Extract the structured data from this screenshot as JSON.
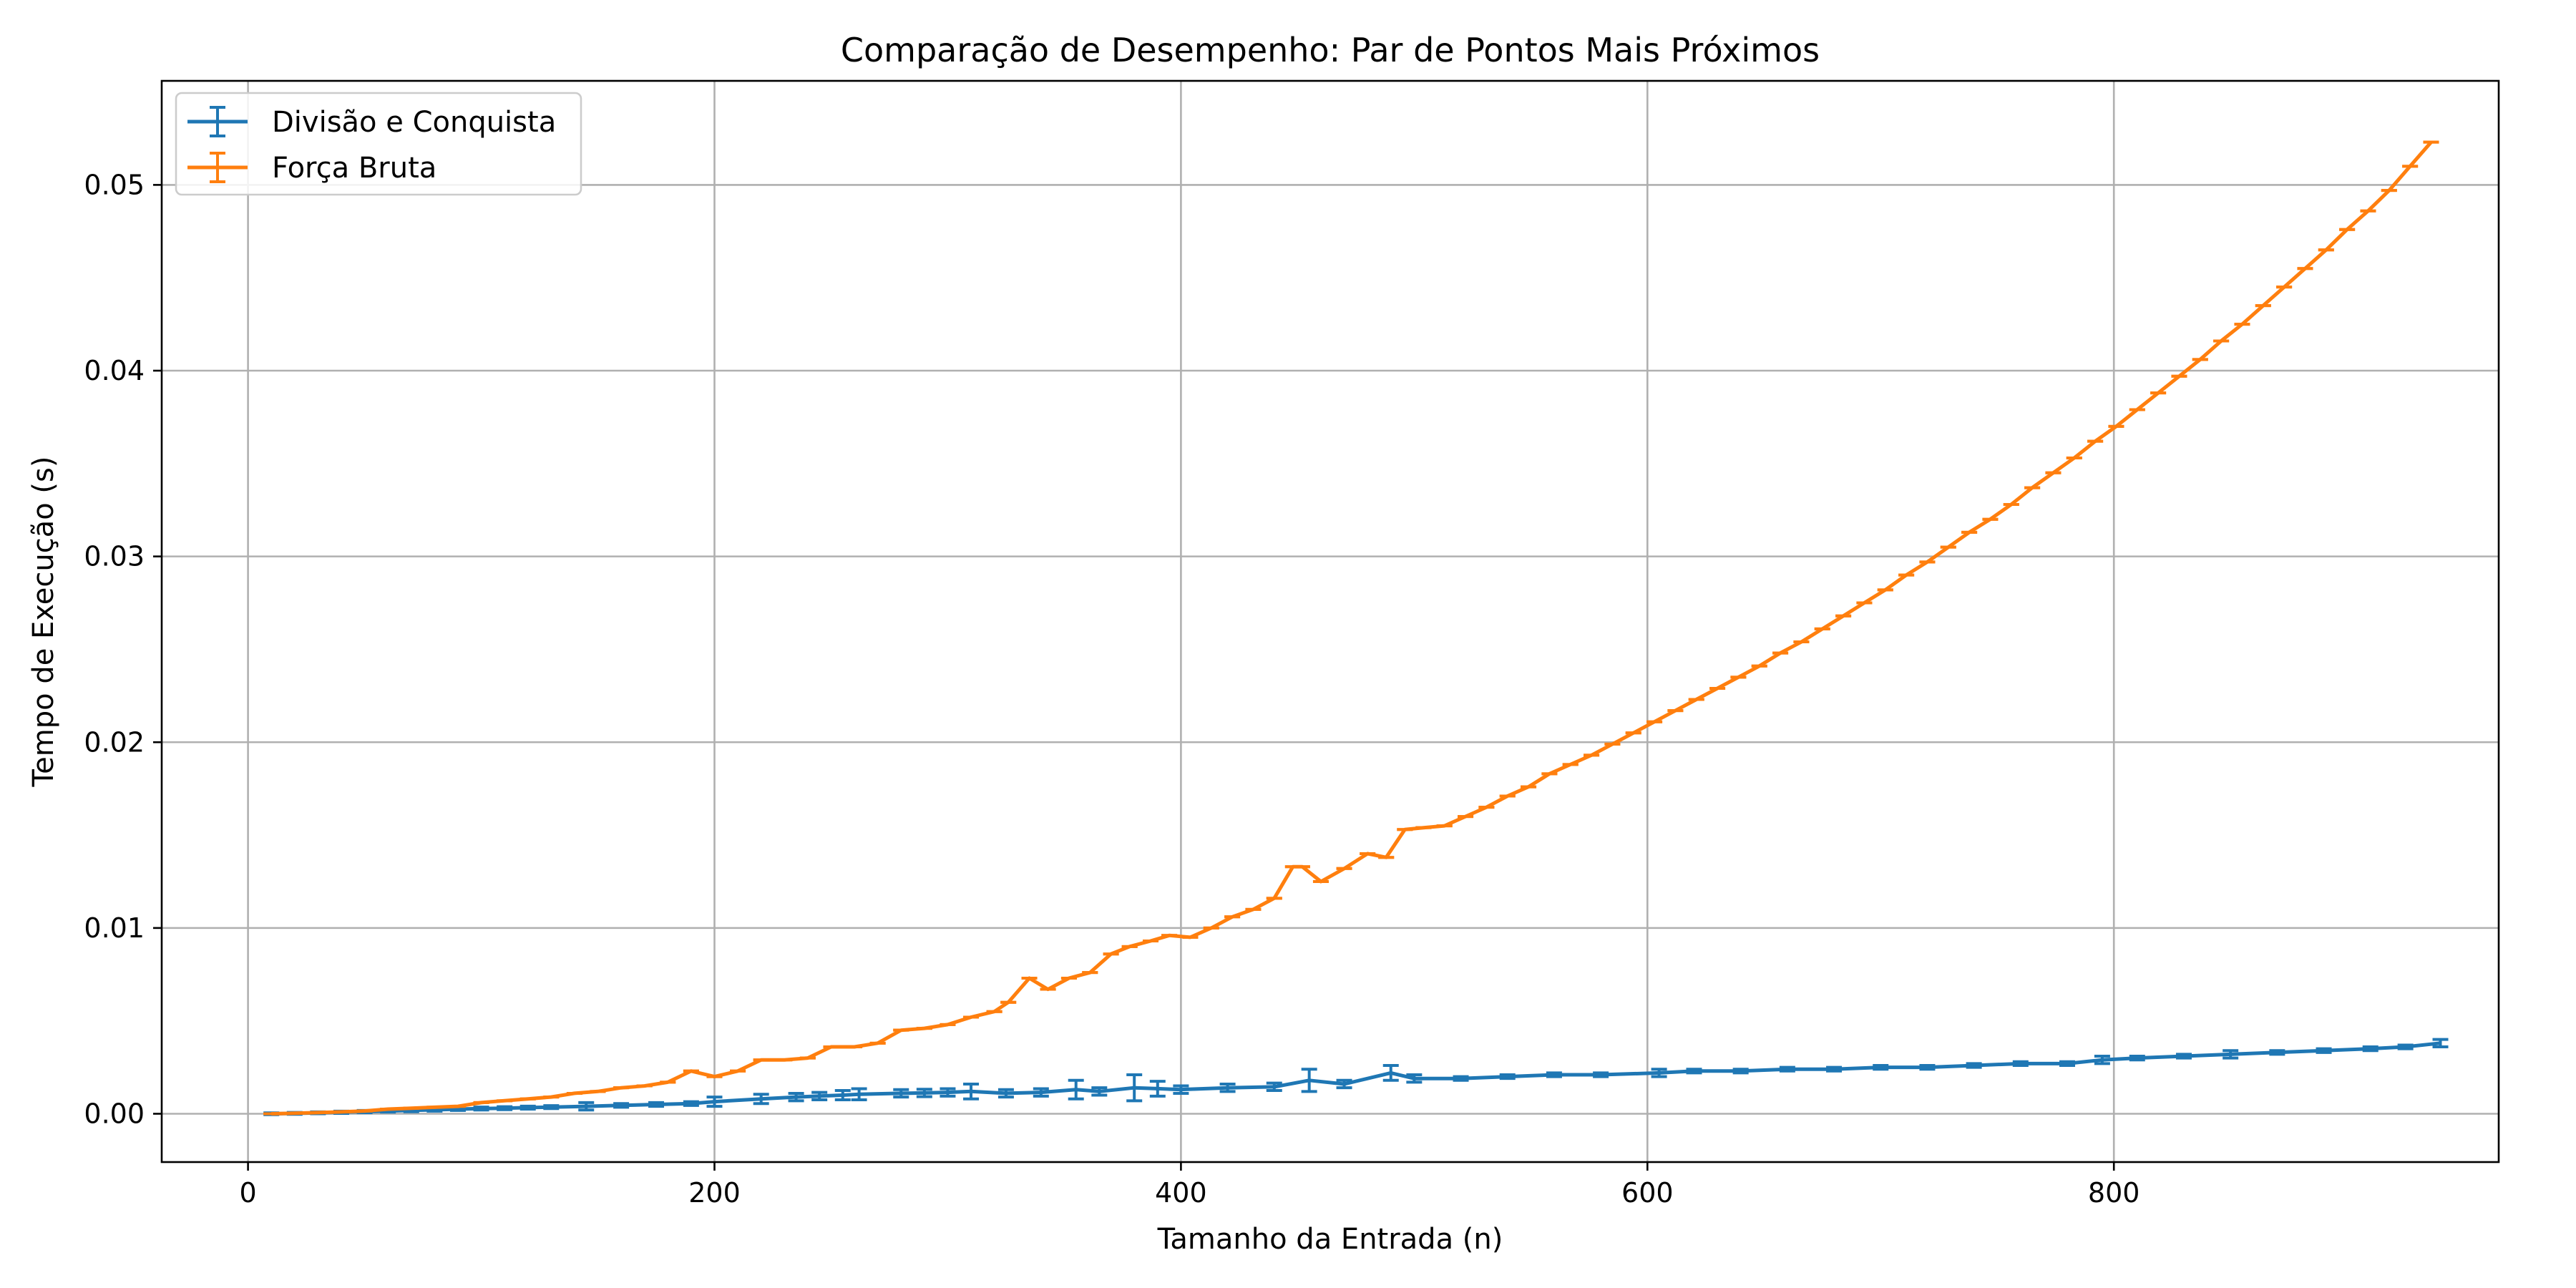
{
  "chart_data": {
    "type": "line",
    "title": "Comparação de Desempenho: Par de Pontos Mais Próximos",
    "xlabel": "Tamanho da Entrada (n)",
    "ylabel": "Tempo de Execução (s)",
    "xlim": [
      -37,
      965
    ],
    "ylim": [
      -0.0026,
      0.0556
    ],
    "xticks": [
      0,
      200,
      400,
      600,
      800
    ],
    "xtick_labels": [
      "0",
      "200",
      "400",
      "600",
      "800"
    ],
    "yticks": [
      0.0,
      0.01,
      0.02,
      0.03,
      0.04,
      0.05
    ],
    "ytick_labels": [
      "0.00",
      "0.01",
      "0.02",
      "0.03",
      "0.04",
      "0.05"
    ],
    "grid": true,
    "legend_position": "top-left",
    "series": [
      {
        "name": "Divisão e Conquista",
        "color": "#1f77b4",
        "x": [
          10,
          20,
          30,
          40,
          50,
          60,
          70,
          80,
          90,
          100,
          110,
          120,
          130,
          145,
          160,
          175,
          190,
          200,
          220,
          235,
          245,
          255,
          262,
          280,
          290,
          300,
          310,
          325,
          340,
          355,
          365,
          380,
          390,
          400,
          420,
          440,
          455,
          470,
          490,
          500,
          520,
          540,
          560,
          580,
          605,
          620,
          640,
          660,
          680,
          700,
          720,
          740,
          760,
          780,
          795,
          810,
          830,
          850,
          870,
          890,
          910,
          925,
          940
        ],
        "y": [
          0.0,
          2e-05,
          5e-05,
          8e-05,
          0.00012,
          0.00015,
          0.00018,
          0.00021,
          0.00025,
          0.00028,
          0.0003,
          0.00033,
          0.00036,
          0.0004,
          0.00045,
          0.0005,
          0.00055,
          0.00065,
          0.0008,
          0.0009,
          0.00095,
          0.001,
          0.00105,
          0.0011,
          0.00112,
          0.00115,
          0.0012,
          0.0011,
          0.00115,
          0.0013,
          0.0012,
          0.0014,
          0.00135,
          0.0013,
          0.0014,
          0.00145,
          0.0018,
          0.0016,
          0.0022,
          0.0019,
          0.0019,
          0.002,
          0.0021,
          0.0021,
          0.0022,
          0.0023,
          0.0023,
          0.0024,
          0.0024,
          0.0025,
          0.0025,
          0.0026,
          0.0027,
          0.0027,
          0.0029,
          0.003,
          0.0031,
          0.0032,
          0.0033,
          0.0034,
          0.0035,
          0.0036,
          0.0038
        ],
        "err": [
          5e-05,
          5e-05,
          5e-05,
          6e-05,
          6e-05,
          6e-05,
          7e-05,
          7e-05,
          7e-05,
          8e-05,
          8e-05,
          8e-05,
          8e-05,
          0.0002,
          0.0001,
          0.0001,
          0.0001,
          0.00025,
          0.00025,
          0.0002,
          0.0002,
          0.00025,
          0.0003,
          0.0002,
          0.0002,
          0.0002,
          0.0004,
          0.0002,
          0.0002,
          0.0005,
          0.0002,
          0.0007,
          0.0004,
          0.0002,
          0.0002,
          0.0002,
          0.0006,
          0.0002,
          0.0004,
          0.0002,
          0.0001,
          0.0001,
          0.0001,
          0.0001,
          0.0002,
          0.0001,
          0.0001,
          0.0001,
          0.0001,
          0.0001,
          0.0001,
          0.0001,
          0.0001,
          0.0001,
          0.0002,
          0.0001,
          0.0001,
          0.0002,
          0.0001,
          0.0001,
          0.0001,
          0.0001,
          0.0002
        ]
      },
      {
        "name": "Força Bruta",
        "color": "#ff7f0e",
        "x": [
          10,
          20,
          30,
          40,
          50,
          60,
          70,
          80,
          90,
          100,
          110,
          120,
          130,
          140,
          150,
          160,
          170,
          180,
          190,
          200,
          210,
          220,
          230,
          240,
          250,
          260,
          270,
          280,
          290,
          300,
          310,
          320,
          326,
          335,
          343,
          352,
          361,
          370,
          378,
          387,
          395,
          404,
          413,
          422,
          431,
          440,
          448,
          452,
          460,
          470,
          480,
          488,
          496,
          504,
          513,
          522,
          531,
          540,
          549,
          558,
          567,
          576,
          585,
          594,
          603,
          612,
          621,
          630,
          639,
          648,
          657,
          666,
          675,
          684,
          693,
          702,
          711,
          720,
          729,
          738,
          747,
          756,
          765,
          774,
          783,
          792,
          801,
          810,
          819,
          828,
          837,
          846,
          855,
          864,
          873,
          882,
          891,
          900,
          909,
          918,
          927,
          936
        ],
        "y": [
          0.0,
          3e-05,
          6e-05,
          0.0001,
          0.00015,
          0.00025,
          0.0003,
          0.00035,
          0.0004,
          0.0006,
          0.0007,
          0.0008,
          0.0009,
          0.0011,
          0.0012,
          0.0014,
          0.0015,
          0.0017,
          0.0023,
          0.002,
          0.0023,
          0.0029,
          0.0029,
          0.003,
          0.0036,
          0.0036,
          0.0038,
          0.0045,
          0.0046,
          0.0048,
          0.0052,
          0.0055,
          0.006,
          0.0073,
          0.0067,
          0.0073,
          0.0076,
          0.0086,
          0.009,
          0.0093,
          0.0096,
          0.0095,
          0.01,
          0.0106,
          0.011,
          0.0116,
          0.0133,
          0.0133,
          0.0125,
          0.0132,
          0.014,
          0.0138,
          0.0153,
          0.0154,
          0.0155,
          0.016,
          0.0165,
          0.0171,
          0.0176,
          0.0183,
          0.0188,
          0.0193,
          0.0199,
          0.0205,
          0.0211,
          0.0217,
          0.0223,
          0.0229,
          0.0235,
          0.0241,
          0.0248,
          0.0254,
          0.0261,
          0.0268,
          0.0275,
          0.0282,
          0.029,
          0.0297,
          0.0305,
          0.0313,
          0.032,
          0.0328,
          0.0337,
          0.0345,
          0.0353,
          0.0362,
          0.037,
          0.0379,
          0.0388,
          0.0397,
          0.0406,
          0.0416,
          0.0425,
          0.0435,
          0.0445,
          0.0455,
          0.0465,
          0.0476,
          0.0486,
          0.0497,
          0.051,
          0.0523
        ]
      }
    ]
  }
}
